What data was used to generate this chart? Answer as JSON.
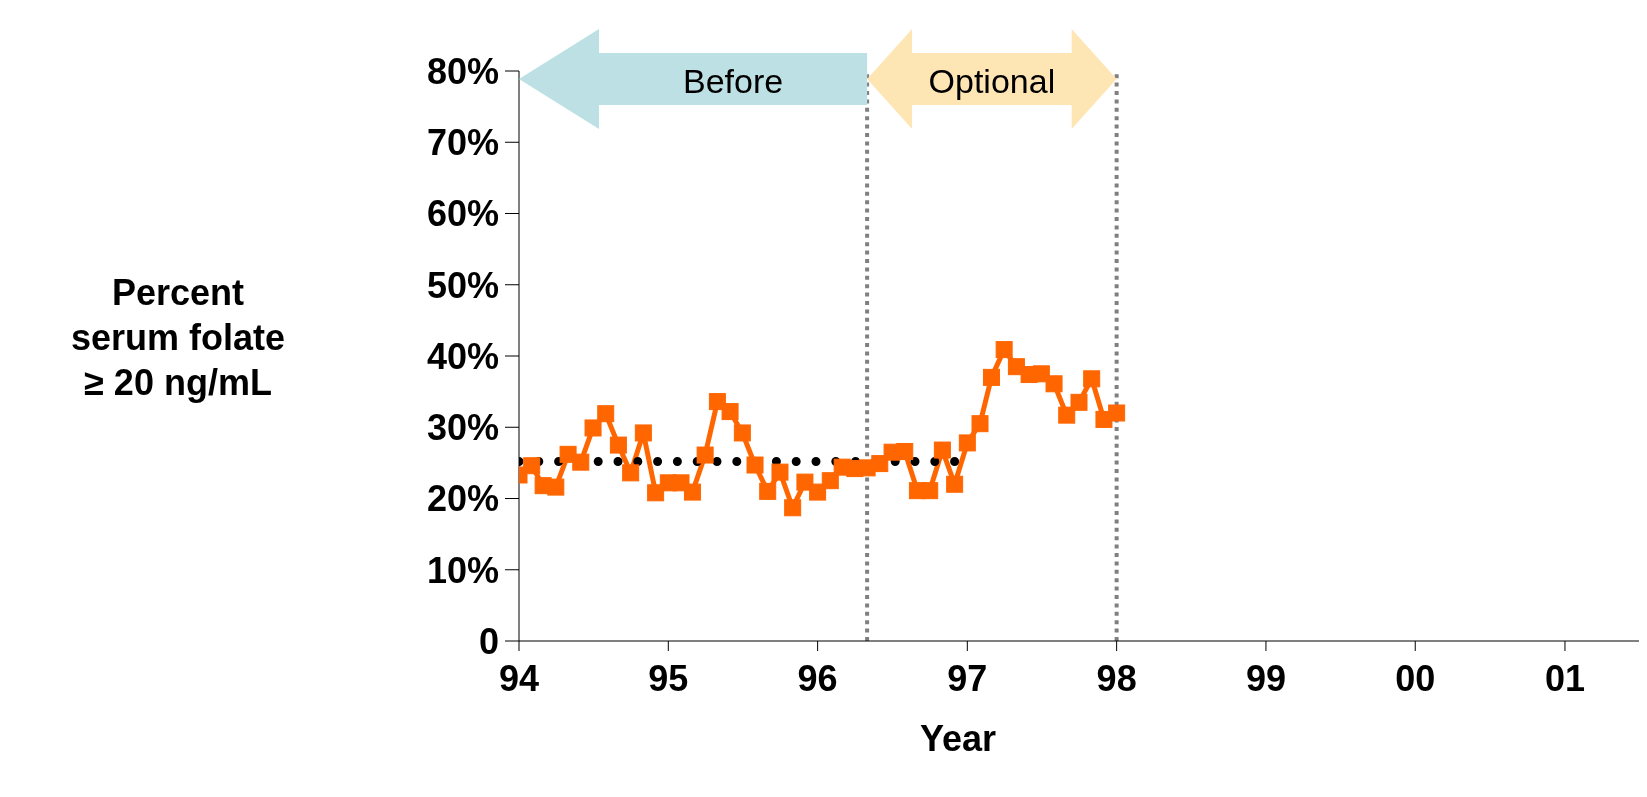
{
  "chart_data": {
    "type": "line",
    "xlabel": "Year",
    "ylabel": "Percent\nserum folate\n≥ 20 ng/mL",
    "xlim": [
      "1994-01",
      "2001-07"
    ],
    "xticks": [
      {
        "value": "1994",
        "label": "94"
      },
      {
        "value": "1995",
        "label": "95"
      },
      {
        "value": "1996",
        "label": "96"
      },
      {
        "value": "1997",
        "label": "97"
      },
      {
        "value": "1998",
        "label": "98"
      },
      {
        "value": "1999",
        "label": "99"
      },
      {
        "value": "2000",
        "label": "00"
      },
      {
        "value": "2001",
        "label": "01"
      }
    ],
    "ylim": [
      0,
      80
    ],
    "yticks": [
      {
        "value": 0,
        "label": "0"
      },
      {
        "value": 10,
        "label": "10%"
      },
      {
        "value": 20,
        "label": "20%"
      },
      {
        "value": 30,
        "label": "30%"
      },
      {
        "value": 40,
        "label": "40%"
      },
      {
        "value": 50,
        "label": "50%"
      },
      {
        "value": 60,
        "label": "60%"
      },
      {
        "value": 70,
        "label": "70%"
      },
      {
        "value": 80,
        "label": "80%"
      }
    ],
    "grid": false,
    "legend": false,
    "series": [
      {
        "color": "#ff6600",
        "marker": "square",
        "line_style": "solid",
        "x": [
          "1994-01",
          "1994-02",
          "1994-03",
          "1994-04",
          "1994-05",
          "1994-06",
          "1994-07",
          "1994-08",
          "1994-09",
          "1994-10",
          "1994-11",
          "1994-12",
          "1995-01",
          "1995-02",
          "1995-03",
          "1995-04",
          "1995-05",
          "1995-06",
          "1995-07",
          "1995-08",
          "1995-09",
          "1995-10",
          "1995-11",
          "1995-12",
          "1996-01",
          "1996-02",
          "1996-03",
          "1996-04",
          "1996-05",
          "1996-06",
          "1996-07",
          "1996-08",
          "1996-09",
          "1996-10",
          "1996-11",
          "1996-12",
          "1997-01",
          "1997-02",
          "1997-03",
          "1997-04",
          "1997-05",
          "1997-06",
          "1997-07",
          "1997-08",
          "1997-09",
          "1997-10",
          "1997-11",
          "1997-12",
          "1998-01"
        ],
        "values": [
          23.3,
          24.6,
          21.8,
          21.6,
          26.2,
          25.1,
          29.9,
          31.9,
          27.5,
          23.6,
          29.2,
          20.8,
          22.2,
          22.2,
          20.9,
          26.1,
          33.6,
          32.2,
          29.2,
          24.7,
          21.0,
          23.7,
          18.7,
          22.3,
          20.9,
          22.5,
          24.4,
          24.2,
          24.3,
          24.9,
          26.5,
          26.6,
          21.1,
          21.1,
          26.8,
          22.0,
          27.8,
          30.5,
          37.0,
          40.9,
          38.5,
          37.4,
          37.5,
          36.1,
          31.7,
          33.5,
          36.8,
          31.1,
          32.0
        ]
      },
      {
        "type": "line",
        "color": "#000000",
        "marker": "none",
        "line_style": "dotted",
        "x": [
          "1994-01",
          "1996-12"
        ],
        "values": [
          25.2,
          25.2
        ]
      }
    ],
    "ref_lines": [
      {
        "axis": "x",
        "value": "1996-05",
        "color": "#808080",
        "line_style": "dotted"
      },
      {
        "axis": "x",
        "value": "1998-01",
        "color": "#808080",
        "line_style": "dotted"
      }
    ],
    "annotations": [
      "Before",
      "Optional"
    ]
  }
}
